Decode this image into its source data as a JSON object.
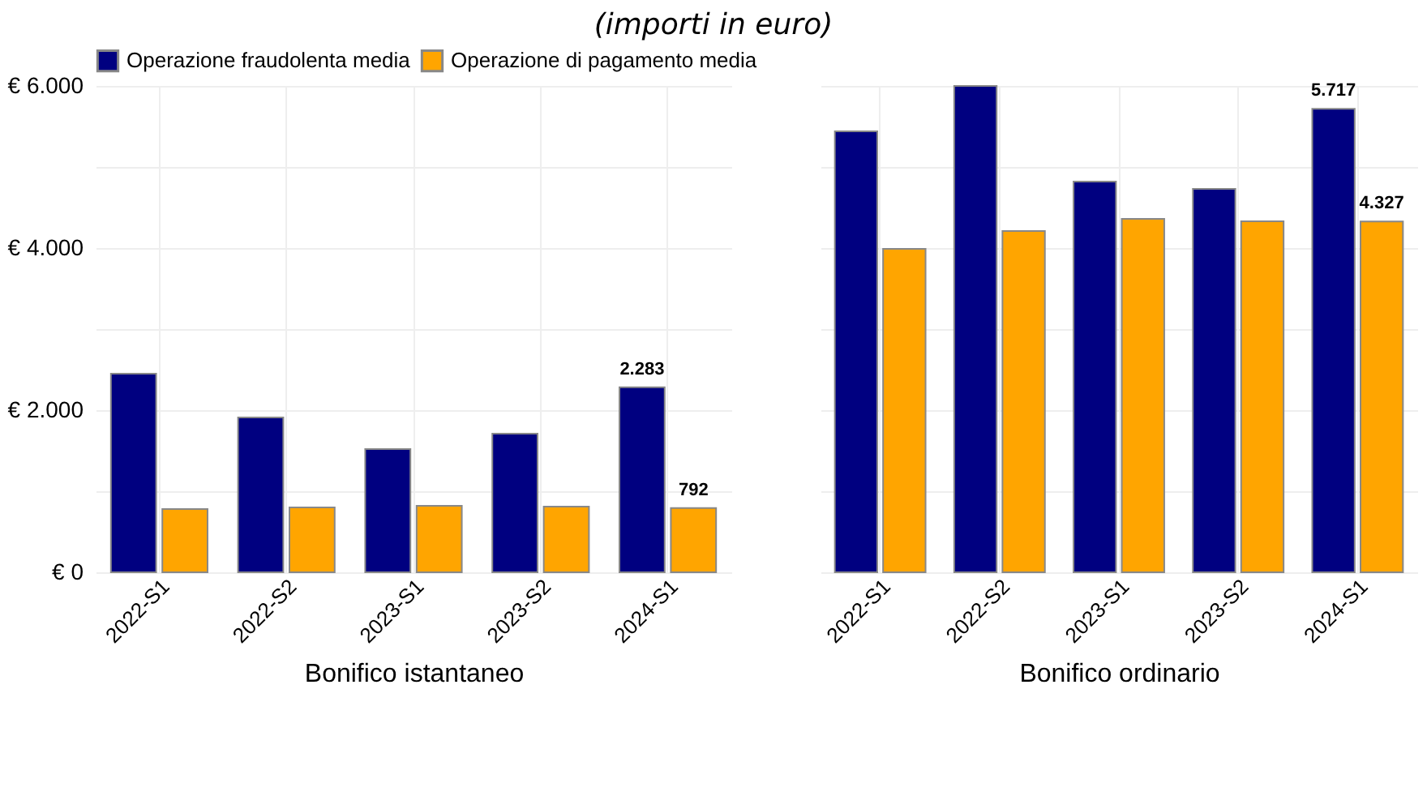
{
  "chart_data": [
    {
      "type": "bar",
      "title": "(importi in euro)",
      "xlabel": "Bonifico istantaneo",
      "categories": [
        "2022-S1",
        "2022-S2",
        "2023-S1",
        "2023-S2",
        "2024-S1"
      ],
      "series": [
        {
          "name": "Operazione fraudolenta media",
          "color": "#000080",
          "values": [
            2450,
            1910,
            1520,
            1710,
            2283
          ],
          "value_labels": [
            null,
            null,
            null,
            null,
            "2.283"
          ]
        },
        {
          "name": "Operazione di pagamento media",
          "color": "#ffa500",
          "values": [
            780,
            800,
            820,
            810,
            792
          ],
          "value_labels": [
            null,
            null,
            null,
            null,
            "792"
          ]
        }
      ],
      "ylim": [
        0,
        6000
      ],
      "yticks": [
        {
          "value": 0,
          "label": "€ 0"
        },
        {
          "value": 1000,
          "label": null
        },
        {
          "value": 2000,
          "label": "€ 2.000"
        },
        {
          "value": 3000,
          "label": null
        },
        {
          "value": 4000,
          "label": "€ 4.000"
        },
        {
          "value": 5000,
          "label": null
        },
        {
          "value": 6000,
          "label": "€ 6.000"
        }
      ],
      "grid": true,
      "legend": "top left"
    },
    {
      "type": "bar",
      "xlabel": "Bonifico ordinario",
      "categories": [
        "2022-S1",
        "2022-S2",
        "2023-S1",
        "2023-S2",
        "2024-S1"
      ],
      "series": [
        {
          "color": "#000080",
          "values": [
            5440,
            6000,
            4820,
            4730,
            5717
          ],
          "value_labels": [
            null,
            null,
            null,
            null,
            "5.717"
          ]
        },
        {
          "color": "#ffa500",
          "values": [
            3990,
            4210,
            4360,
            4330,
            4327
          ],
          "value_labels": [
            null,
            null,
            null,
            null,
            "4.327"
          ]
        }
      ],
      "ylim": [
        0,
        6000
      ],
      "yticks": [
        0,
        1000,
        2000,
        3000,
        4000,
        5000,
        6000
      ],
      "grid": true,
      "tick_labels": "x"
    }
  ]
}
